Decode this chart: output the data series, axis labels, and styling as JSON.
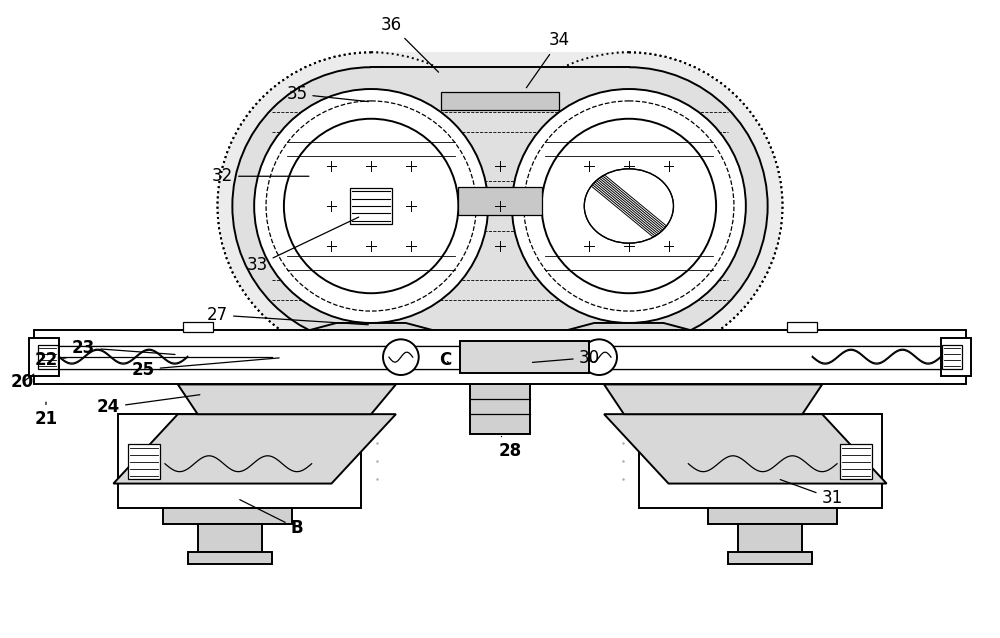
{
  "bg_color": "#ffffff",
  "line_color": "#000000",
  "fill_outer": "#d8d8d8",
  "fill_inner": "#e8e8e8",
  "fill_light": "#f0f0f0",
  "fill_dotted": "#e4e4e4",
  "fill_support": "#e0e0e0",
  "labels_normal": [
    "32",
    "33",
    "27",
    "34",
    "35",
    "36",
    "30",
    "28",
    "31"
  ],
  "labels_bold": [
    "20",
    "21",
    "22",
    "23",
    "24",
    "25",
    "B",
    "C"
  ],
  "fig_width": 10.0,
  "fig_height": 6.38,
  "dpi": 100
}
